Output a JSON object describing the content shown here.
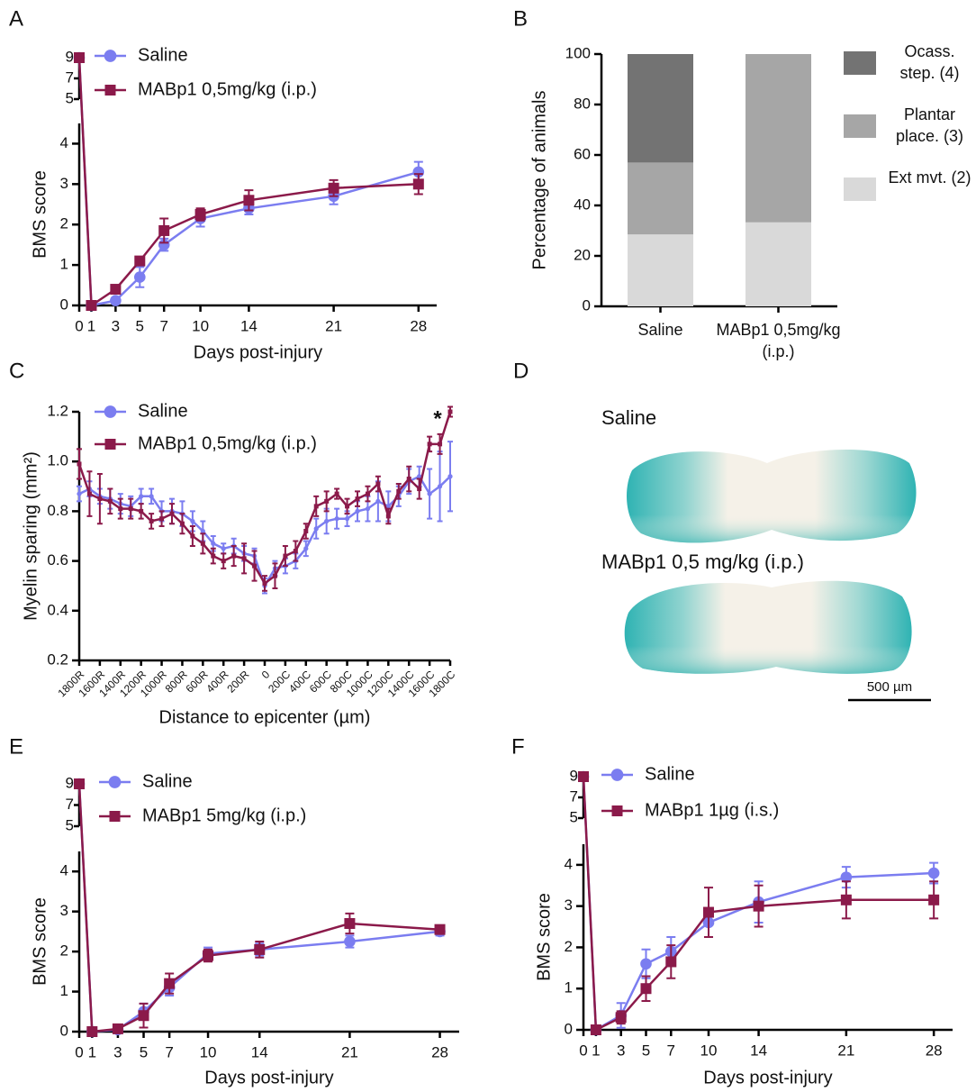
{
  "chart_data": [
    {
      "panel": "A",
      "type": "line",
      "ylabel": "BMS score",
      "xlabel": "Days post-injury",
      "x": [
        0,
        1,
        3,
        5,
        7,
        10,
        14,
        21,
        28
      ],
      "xticks": [
        0,
        1,
        3,
        5,
        7,
        10,
        14,
        21,
        28
      ],
      "xlim": [
        0,
        29.5
      ],
      "ylim": [
        0,
        4.5
      ],
      "yticks": [
        0,
        1,
        2,
        3,
        4
      ],
      "ylim_upper": [
        5,
        9
      ],
      "yticks_upper": [
        5,
        7,
        9
      ],
      "series": [
        {
          "name": "Saline",
          "color": "#7b7df0",
          "marker": "circle",
          "values": [
            9,
            0,
            0.12,
            0.7,
            1.5,
            2.15,
            2.4,
            2.7,
            3.3
          ],
          "errors": [
            0,
            0,
            0.05,
            0.25,
            0.15,
            0.2,
            0.15,
            0.2,
            0.25
          ]
        },
        {
          "name": "MABp1 0,5mg/kg  (i.p.)",
          "color": "#8b1a4a",
          "marker": "square",
          "values": [
            9,
            0,
            0.4,
            1.1,
            1.85,
            2.25,
            2.6,
            2.9,
            3.0
          ],
          "errors": [
            0,
            0,
            0.05,
            0.1,
            0.3,
            0.15,
            0.25,
            0.2,
            0.25
          ]
        }
      ]
    },
    {
      "panel": "B",
      "type": "stacked_bar",
      "ylabel": "Percentage of animals",
      "categories": [
        "Saline",
        "MABp1 0,5mg/kg (i.p.)"
      ],
      "ylim": [
        0,
        100
      ],
      "yticks": [
        0,
        20,
        40,
        60,
        80,
        100
      ],
      "series": [
        {
          "name": "Ext mvt. (2)",
          "color": "#d9d9d9",
          "values": [
            28.5,
            33.3
          ]
        },
        {
          "name": "Plantar place. (3)",
          "color": "#a6a6a6",
          "values": [
            28.5,
            66.7
          ]
        },
        {
          "name": "Ocass. step. (4)",
          "color": "#737373",
          "values": [
            43,
            0
          ]
        }
      ]
    },
    {
      "panel": "C",
      "type": "line",
      "ylabel": "Myelin sparing (mm²)",
      "xlabel": "Distance to epicenter (µm)",
      "annotation": "*",
      "categories": [
        "1800R",
        null,
        "1600R",
        null,
        "1400R",
        null,
        "1200R",
        null,
        "1000R",
        null,
        "800R",
        null,
        "600R",
        null,
        "400R",
        null,
        "200R",
        null,
        "0",
        null,
        "200C",
        null,
        "400C",
        null,
        "600C",
        null,
        "800C",
        null,
        "1000C",
        null,
        "1200C",
        null,
        "1400C",
        null,
        "1600C",
        null,
        "1800C"
      ],
      "ylim": [
        0.2,
        1.2
      ],
      "yticks": [
        0.2,
        0.4,
        0.6,
        0.8,
        {
          "value": 1,
          "label": "1.0"
        },
        1.2
      ],
      "series": [
        {
          "name": "Saline",
          "color": "#7b7df0",
          "marker": "circle",
          "values": [
            0.87,
            0.89,
            0.86,
            0.85,
            0.83,
            0.82,
            0.86,
            0.86,
            0.8,
            0.8,
            0.79,
            0.76,
            0.72,
            0.67,
            0.65,
            0.66,
            0.63,
            0.62,
            0.5,
            0.57,
            0.58,
            0.6,
            0.65,
            0.73,
            0.76,
            0.77,
            0.77,
            0.8,
            0.81,
            0.84,
            0.82,
            0.86,
            0.92,
            0.94,
            0.87,
            0.9,
            0.94
          ],
          "errors": [
            0.03,
            0.03,
            0.03,
            0.04,
            0.04,
            0.04,
            0.03,
            0.03,
            0.04,
            0.05,
            0.05,
            0.04,
            0.04,
            0.03,
            0.02,
            0.03,
            0.03,
            0.03,
            0.03,
            0.03,
            0.03,
            0.03,
            0.03,
            0.04,
            0.05,
            0.04,
            0.03,
            0.04,
            0.05,
            0.08,
            0.06,
            0.04,
            0.05,
            0.04,
            0.1,
            0.14,
            0.14
          ]
        },
        {
          "name": "MABp1 0,5mg/kg  (i.p.)",
          "color": "#8b1a4a",
          "marker": "square",
          "values": [
            0.99,
            0.87,
            0.85,
            0.84,
            0.81,
            0.81,
            0.8,
            0.76,
            0.77,
            0.79,
            0.75,
            0.7,
            0.67,
            0.62,
            0.6,
            0.62,
            0.61,
            0.58,
            0.51,
            0.54,
            0.62,
            0.64,
            0.72,
            0.82,
            0.84,
            0.87,
            0.82,
            0.85,
            0.87,
            0.91,
            0.78,
            0.88,
            0.93,
            0.89,
            1.07,
            1.07,
            1.2
          ],
          "errors": [
            0.06,
            0.09,
            0.1,
            0.05,
            0.04,
            0.04,
            0.03,
            0.03,
            0.03,
            0.04,
            0.04,
            0.04,
            0.04,
            0.03,
            0.03,
            0.04,
            0.06,
            0.06,
            0.03,
            0.05,
            0.04,
            0.04,
            0.03,
            0.04,
            0.04,
            0.02,
            0.03,
            0.03,
            0.03,
            0.03,
            0.03,
            0.03,
            0.05,
            0.04,
            0.03,
            0.04,
            0.02
          ]
        }
      ]
    },
    {
      "panel": "E",
      "type": "line",
      "ylabel": "BMS score",
      "xlabel": "Days post-injury",
      "x": [
        0,
        1,
        3,
        5,
        7,
        10,
        14,
        21,
        28
      ],
      "xticks": [
        0,
        1,
        3,
        5,
        7,
        10,
        14,
        21,
        28
      ],
      "xlim": [
        0,
        29.5
      ],
      "ylim": [
        0,
        4.5
      ],
      "yticks": [
        0,
        1,
        2,
        3,
        4
      ],
      "ylim_upper": [
        5,
        9
      ],
      "yticks_upper": [
        5,
        7,
        9
      ],
      "series": [
        {
          "name": "Saline",
          "color": "#7b7df0",
          "marker": "circle",
          "values": [
            9,
            0,
            0.05,
            0.5,
            1.1,
            1.95,
            2.05,
            2.25,
            2.5
          ],
          "errors": [
            0,
            0,
            0.03,
            0.2,
            0.2,
            0.15,
            0.15,
            0.15,
            0.1
          ]
        },
        {
          "name": "MABp1 5mg/kg  (i.p.)",
          "color": "#8b1a4a",
          "marker": "square",
          "values": [
            9,
            0,
            0.07,
            0.4,
            1.2,
            1.9,
            2.05,
            2.7,
            2.55
          ],
          "errors": [
            0,
            0,
            0.03,
            0.3,
            0.25,
            0.15,
            0.2,
            0.25,
            0.05
          ]
        }
      ]
    },
    {
      "panel": "F",
      "type": "line",
      "ylabel": "BMS score",
      "xlabel": "Days post-injury",
      "x": [
        0,
        1,
        3,
        5,
        7,
        10,
        14,
        21,
        28
      ],
      "xticks": [
        0,
        1,
        3,
        5,
        7,
        10,
        14,
        21,
        28
      ],
      "xlim": [
        0,
        29.5
      ],
      "ylim": [
        0,
        4.5
      ],
      "yticks": [
        0,
        1,
        2,
        3,
        4
      ],
      "ylim_upper": [
        5,
        9
      ],
      "yticks_upper": [
        5,
        7,
        9
      ],
      "series": [
        {
          "name": "Saline",
          "color": "#7b7df0",
          "marker": "circle",
          "values": [
            9,
            0,
            0.35,
            1.6,
            1.9,
            2.6,
            3.1,
            3.7,
            3.8
          ],
          "errors": [
            0,
            0,
            0.3,
            0.35,
            0.35,
            0.35,
            0.5,
            0.25,
            0.25
          ]
        },
        {
          "name": "MABp1 1µg (i.s.)",
          "color": "#8b1a4a",
          "marker": "square",
          "values": [
            9,
            0,
            0.3,
            1.0,
            1.65,
            2.85,
            3.0,
            3.15,
            3.15
          ],
          "errors": [
            0,
            0,
            0.15,
            0.3,
            0.4,
            0.6,
            0.5,
            0.45,
            0.45
          ]
        }
      ]
    }
  ],
  "image_panel": {
    "panel": "D",
    "images": [
      {
        "label": "Saline"
      },
      {
        "label": "MABp1 0,5 mg/kg (i.p.)"
      }
    ],
    "scale_bar": "500 µm"
  }
}
